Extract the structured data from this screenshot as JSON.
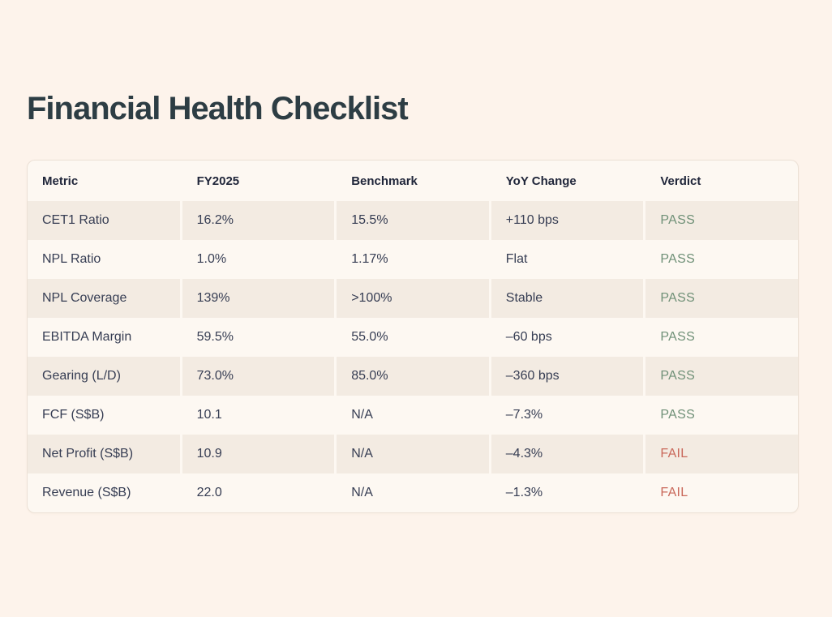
{
  "page": {
    "title": "Financial Health Checklist"
  },
  "colors": {
    "background": "#fdf3eb",
    "card_background": "#fdf8f2",
    "band": "#f3ebe2",
    "pass": "#6f9077",
    "fail": "#c9685a"
  },
  "table": {
    "headers": {
      "metric": "Metric",
      "fy2025": "FY2025",
      "benchmark": "Benchmark",
      "yoy": "YoY Change",
      "verdict": "Verdict"
    },
    "rows": [
      {
        "metric": "CET1 Ratio",
        "fy2025": "16.2%",
        "benchmark": "15.5%",
        "yoy": "+110 bps",
        "verdict": "PASS"
      },
      {
        "metric": "NPL Ratio",
        "fy2025": "1.0%",
        "benchmark": "1.17%",
        "yoy": "Flat",
        "verdict": "PASS"
      },
      {
        "metric": "NPL Coverage",
        "fy2025": "139%",
        "benchmark": ">100%",
        "yoy": "Stable",
        "verdict": "PASS"
      },
      {
        "metric": "EBITDA Margin",
        "fy2025": "59.5%",
        "benchmark": "55.0%",
        "yoy": "–60 bps",
        "verdict": "PASS"
      },
      {
        "metric": "Gearing (L/D)",
        "fy2025": "73.0%",
        "benchmark": "85.0%",
        "yoy": "–360 bps",
        "verdict": "PASS"
      },
      {
        "metric": "FCF (S$B)",
        "fy2025": "10.1",
        "benchmark": "N/A",
        "yoy": "–7.3%",
        "verdict": "PASS"
      },
      {
        "metric": "Net Profit (S$B)",
        "fy2025": "10.9",
        "benchmark": "N/A",
        "yoy": "–4.3%",
        "verdict": "FAIL"
      },
      {
        "metric": "Revenue (S$B)",
        "fy2025": "22.0",
        "benchmark": "N/A",
        "yoy": "–1.3%",
        "verdict": "FAIL"
      }
    ]
  }
}
